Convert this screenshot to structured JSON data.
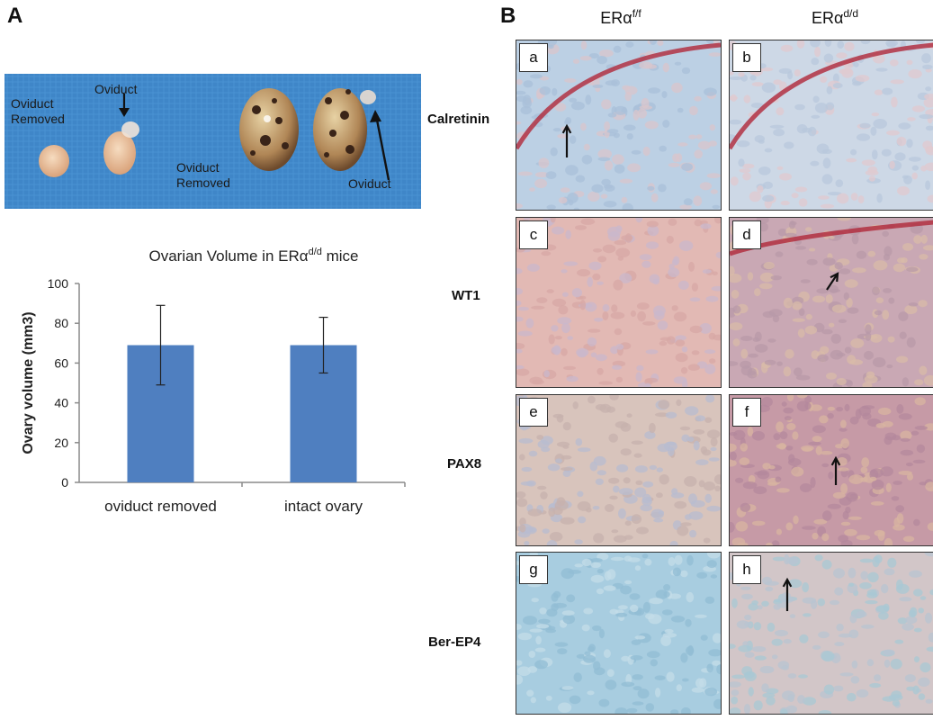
{
  "panels": {
    "a_label": "A",
    "b_label": "B"
  },
  "photo": {
    "labels": {
      "oviduct_removed_1": "Oviduct\nRemoved",
      "oviduct_1": "Oviduct",
      "oviduct_removed_2": "Oviduct\nRemoved",
      "oviduct_2": "Oviduct"
    },
    "background_color": "#3f86c8"
  },
  "chart_data": {
    "type": "bar",
    "title_prefix": "Ovarian Volume in ERα",
    "title_sup": "d/d",
    "title_suffix": " mice",
    "categories": [
      "oviduct removed",
      "intact ovary"
    ],
    "values": [
      69,
      69
    ],
    "errors": [
      20,
      14
    ],
    "ylabel": "Ovary volume (mm3)",
    "ylim": [
      0,
      100
    ],
    "yticks": [
      0,
      20,
      40,
      60,
      80,
      100
    ],
    "bar_color": "#4f7fc0",
    "grid": false
  },
  "column_headers": [
    {
      "base": "ERα",
      "sup": "f/f"
    },
    {
      "base": "ERα",
      "sup": "d/d"
    }
  ],
  "rows": [
    "Calretinin",
    "WT1",
    "PAX8",
    "Ber-EP4"
  ],
  "subpanels": [
    "a",
    "b",
    "c",
    "d",
    "e",
    "f",
    "g",
    "h"
  ]
}
